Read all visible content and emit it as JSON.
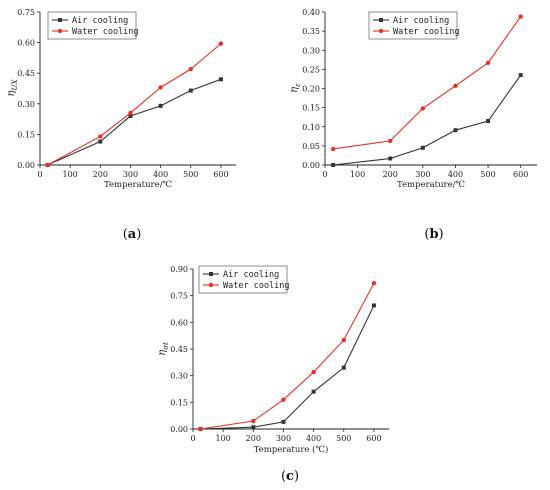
{
  "chart_data": [
    {
      "panel": "a",
      "type": "line",
      "xlabel": "Temperature/℃",
      "ylabel": "η_UX",
      "ylabel_main": "η",
      "ylabel_sub": "UX",
      "xlim": [
        0,
        650
      ],
      "ylim": [
        0,
        0.75
      ],
      "xticks": [
        "0",
        "100",
        "200",
        "300",
        "400",
        "500",
        "600"
      ],
      "yticks": [
        "0.00",
        "0.15",
        "0.30",
        "0.45",
        "0.60",
        "0.75"
      ],
      "panel_label": {
        "open": "(",
        "letter": "a",
        "close": ")"
      },
      "legend_position": "top-left",
      "series": [
        {
          "name": "Air cooling",
          "color": "#333333",
          "marker": "square",
          "x": [
            25,
            200,
            300,
            400,
            500,
            600
          ],
          "y": [
            0.0,
            0.115,
            0.24,
            0.29,
            0.365,
            0.42
          ]
        },
        {
          "name": "Water cooling",
          "color": "#e8302a",
          "marker": "circle",
          "x": [
            25,
            200,
            300,
            400,
            500,
            600
          ],
          "y": [
            0.0,
            0.14,
            0.255,
            0.38,
            0.47,
            0.595
          ]
        }
      ]
    },
    {
      "panel": "b",
      "type": "line",
      "xlabel": "Temperature/℃",
      "ylabel": "η_ε",
      "ylabel_main": "η",
      "ylabel_sub": "ε",
      "xlim": [
        0,
        650
      ],
      "ylim": [
        0,
        0.4
      ],
      "xticks": [
        "0",
        "100",
        "200",
        "300",
        "400",
        "500",
        "600"
      ],
      "yticks": [
        "0.00",
        "0.05",
        "0.10",
        "0.15",
        "0.20",
        "0.25",
        "0.30",
        "0.35",
        "0.40"
      ],
      "panel_label": {
        "open": "(",
        "letter": "b",
        "close": ")"
      },
      "legend_position": "top-left",
      "series": [
        {
          "name": "Air cooling",
          "color": "#333333",
          "marker": "square",
          "x": [
            25,
            200,
            300,
            400,
            500,
            600
          ],
          "y": [
            0.0,
            0.017,
            0.045,
            0.091,
            0.115,
            0.235
          ]
        },
        {
          "name": "Water cooling",
          "color": "#e8302a",
          "marker": "circle",
          "x": [
            25,
            200,
            300,
            400,
            500,
            600
          ],
          "y": [
            0.042,
            0.063,
            0.148,
            0.207,
            0.267,
            0.388
          ]
        }
      ]
    },
    {
      "panel": "c",
      "type": "line",
      "xlabel": "Temperature (℃)",
      "ylabel": "η_σt",
      "ylabel_main": "η",
      "ylabel_sub": "σt",
      "xlim": [
        0,
        650
      ],
      "ylim": [
        0,
        0.9
      ],
      "xticks": [
        "0",
        "100",
        "200",
        "300",
        "400",
        "500",
        "600"
      ],
      "yticks": [
        "0.00",
        "0.15",
        "0.30",
        "0.45",
        "0.60",
        "0.75",
        "0.90"
      ],
      "panel_label": {
        "open": "(",
        "letter": "c",
        "close": ")"
      },
      "legend_position": "top-left",
      "series": [
        {
          "name": "Air cooling",
          "color": "#333333",
          "marker": "square",
          "x": [
            25,
            200,
            300,
            400,
            500,
            600
          ],
          "y": [
            0.0,
            0.01,
            0.04,
            0.21,
            0.345,
            0.695
          ]
        },
        {
          "name": "Water cooling",
          "color": "#e8302a",
          "marker": "circle",
          "x": [
            25,
            200,
            300,
            400,
            500,
            600
          ],
          "y": [
            0.0,
            0.045,
            0.165,
            0.32,
            0.5,
            0.82
          ]
        }
      ]
    }
  ]
}
